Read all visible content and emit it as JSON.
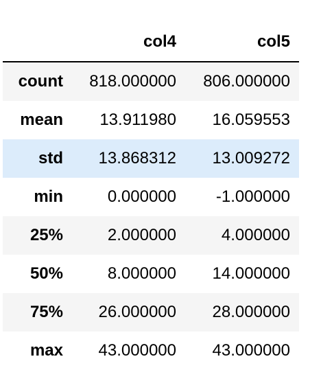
{
  "table": {
    "columns": [
      "col4",
      "col5"
    ],
    "rows": [
      {
        "label": "count",
        "values": [
          "818.000000",
          "806.000000"
        ]
      },
      {
        "label": "mean",
        "values": [
          "13.911980",
          "16.059553"
        ]
      },
      {
        "label": "std",
        "values": [
          "13.868312",
          "13.009272"
        ]
      },
      {
        "label": "min",
        "values": [
          "0.000000",
          "-1.000000"
        ]
      },
      {
        "label": "25%",
        "values": [
          "2.000000",
          "4.000000"
        ]
      },
      {
        "label": "50%",
        "values": [
          "8.000000",
          "14.000000"
        ]
      },
      {
        "label": "75%",
        "values": [
          "26.000000",
          "28.000000"
        ]
      },
      {
        "label": "max",
        "values": [
          "43.000000",
          "43.000000"
        ]
      }
    ],
    "highlighted_row": "std"
  },
  "colors": {
    "stripe": "#f5f5f5",
    "hover": "#dcecfb",
    "header_rule": "#000000"
  }
}
